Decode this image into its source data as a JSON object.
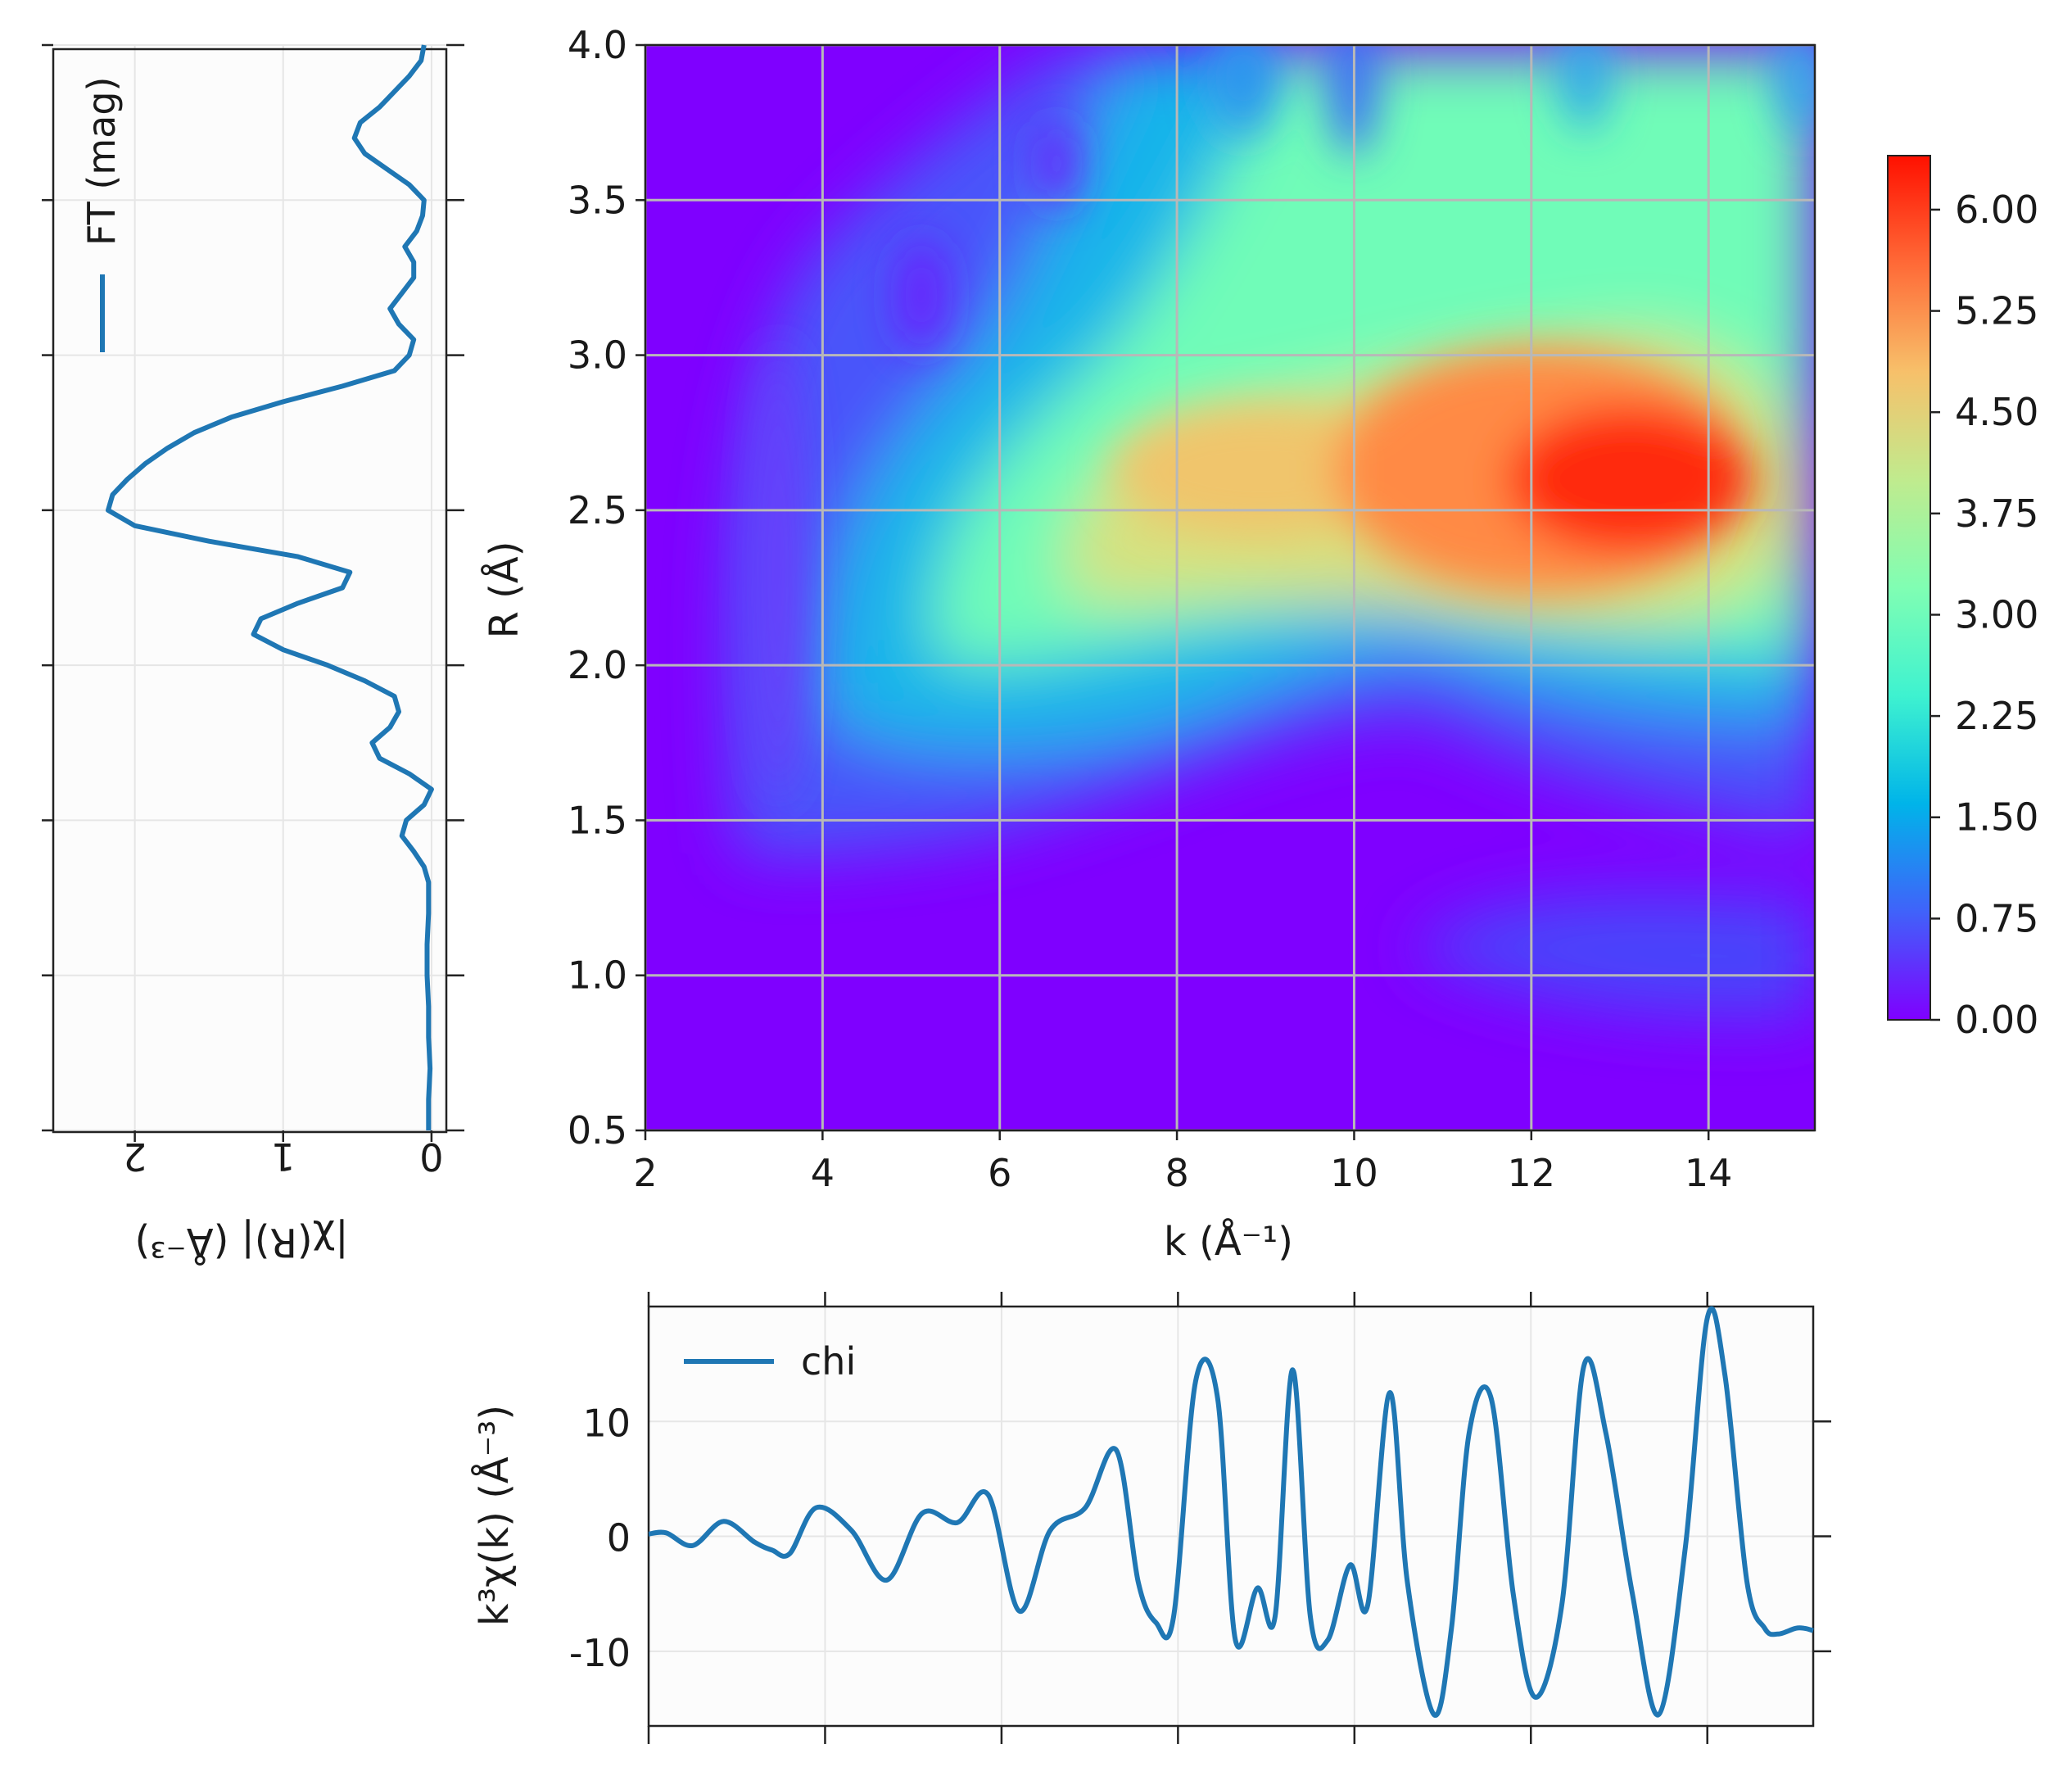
{
  "chart_data": [
    {
      "id": "wavelet",
      "type": "heatmap",
      "title": "",
      "xlabel": "k (Å⁻¹)",
      "ylabel": "R (Å)",
      "xlim": [
        2,
        15.2
      ],
      "ylim": [
        0.5,
        4.0
      ],
      "xticks": [
        "2",
        "4",
        "6",
        "8",
        "10",
        "12",
        "14"
      ],
      "yticks": [
        "0.5",
        "1.0",
        "1.5",
        "2.0",
        "2.5",
        "3.0",
        "3.5",
        "4.0"
      ],
      "grid": true,
      "colormap": "rainbow",
      "colorbar": {
        "range": [
          0,
          6.4
        ],
        "ticks": [
          "0.00",
          "0.75",
          "1.50",
          "2.25",
          "3.00",
          "3.75",
          "4.50",
          "5.25",
          "6.00"
        ]
      },
      "features": [
        {
          "k": 13.1,
          "R": 2.6,
          "value": 6.3,
          "note": "main maximum"
        },
        {
          "k": 9.0,
          "R": 2.65,
          "value": 4.5
        },
        {
          "k": 11.3,
          "R": 2.65,
          "value": 5.2
        },
        {
          "k": 8.5,
          "R": 3.6,
          "value": 2.8
        },
        {
          "k": 12.6,
          "R": 3.7,
          "value": 2.8
        },
        {
          "k": 5.1,
          "R": 3.2,
          "value": 0.2,
          "note": "local minimum"
        }
      ]
    },
    {
      "id": "ft_mag",
      "type": "line",
      "orientation": "vertical",
      "xlabel": "|χ(R)| (Å⁻³)",
      "legend": [
        "FT (mag)"
      ],
      "xlim": [
        2.55,
        -0.1
      ],
      "xticks": [
        "2",
        "1",
        "0"
      ],
      "series": [
        {
          "name": "FT (mag)",
          "R": [
            0.5,
            0.6,
            0.7,
            0.8,
            0.9,
            1.0,
            1.1,
            1.2,
            1.3,
            1.35,
            1.4,
            1.45,
            1.5,
            1.55,
            1.6,
            1.65,
            1.7,
            1.75,
            1.8,
            1.85,
            1.9,
            1.95,
            2.0,
            2.05,
            2.1,
            2.15,
            2.2,
            2.25,
            2.3,
            2.35,
            2.4,
            2.45,
            2.5,
            2.55,
            2.6,
            2.65,
            2.7,
            2.75,
            2.8,
            2.85,
            2.9,
            2.95,
            3.0,
            3.05,
            3.1,
            3.15,
            3.2,
            3.25,
            3.3,
            3.35,
            3.4,
            3.45,
            3.5,
            3.55,
            3.6,
            3.65,
            3.7,
            3.75,
            3.8,
            3.85,
            3.9,
            3.95,
            4.0
          ],
          "values": [
            0.02,
            0.02,
            0.01,
            0.02,
            0.02,
            0.03,
            0.03,
            0.02,
            0.02,
            0.05,
            0.12,
            0.2,
            0.17,
            0.05,
            0.0,
            0.15,
            0.35,
            0.4,
            0.28,
            0.22,
            0.25,
            0.45,
            0.7,
            1.0,
            1.2,
            1.15,
            0.9,
            0.6,
            0.55,
            0.9,
            1.5,
            2.0,
            2.18,
            2.15,
            2.05,
            1.93,
            1.78,
            1.6,
            1.35,
            1.0,
            0.6,
            0.25,
            0.15,
            0.12,
            0.22,
            0.28,
            0.2,
            0.12,
            0.12,
            0.18,
            0.1,
            0.06,
            0.05,
            0.15,
            0.3,
            0.45,
            0.52,
            0.48,
            0.35,
            0.25,
            0.15,
            0.07,
            0.05
          ]
        }
      ]
    },
    {
      "id": "chi_k",
      "type": "line",
      "xlabel": "",
      "ylabel": "k³χ(k) (Å⁻³)",
      "legend": [
        "chi"
      ],
      "xlim": [
        2,
        15.2
      ],
      "ylim": [
        -16.5,
        20
      ],
      "yticks": [
        -10,
        0,
        10
      ],
      "ytick_labels": [
        "-10",
        "0",
        "10"
      ],
      "series": [
        {
          "name": "chi",
          "k": [
            2.0,
            2.2,
            2.5,
            2.85,
            3.2,
            3.4,
            3.6,
            3.9,
            4.3,
            4.7,
            5.1,
            5.5,
            5.85,
            6.2,
            6.55,
            6.95,
            7.3,
            7.55,
            7.75,
            7.95,
            8.2,
            8.45,
            8.65,
            8.9,
            9.1,
            9.3,
            9.5,
            9.7,
            9.95,
            10.15,
            10.4,
            10.6,
            10.9,
            11.1,
            11.3,
            11.55,
            11.8,
            12.05,
            12.35,
            12.6,
            12.85,
            13.15,
            13.45,
            13.75,
            14.0,
            14.2,
            14.45,
            14.65,
            14.8,
            15.0,
            15.1,
            15.2
          ],
          "values": [
            0.2,
            0.3,
            -0.8,
            1.3,
            -0.5,
            -1.2,
            -1.5,
            2.5,
            0.5,
            -3.8,
            2.0,
            1.2,
            3.6,
            -6.5,
            0.5,
            2.5,
            7.5,
            -4.0,
            -7.5,
            -7.0,
            13.5,
            12.0,
            -9.0,
            -4.5,
            -7.0,
            14.5,
            -7.0,
            -9.0,
            -2.5,
            -6.0,
            12.5,
            -4.0,
            -15.5,
            -8.0,
            9.0,
            12.0,
            -5.0,
            -14.0,
            -6.0,
            14.8,
            9.0,
            -5.0,
            -15.5,
            -1.0,
            19.0,
            14.0,
            -4.0,
            -8.0,
            -8.5,
            -8.0,
            -8.0,
            -8.2
          ]
        }
      ]
    }
  ]
}
